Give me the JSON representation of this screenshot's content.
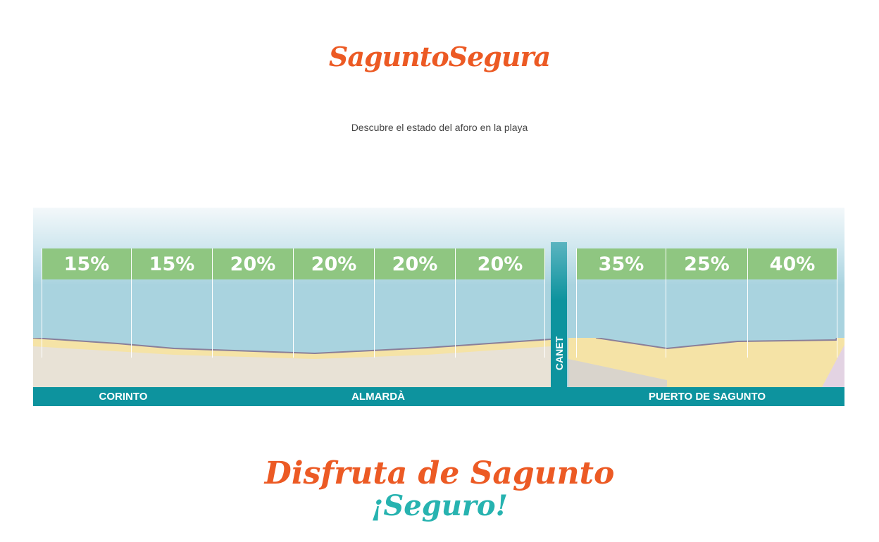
{
  "header": {
    "logo_text": "SaguntoSegura",
    "subtitle": "Descubre el estado del aforo en la playa"
  },
  "beach_map": {
    "sectors_left": [
      {
        "occupancy": "15%"
      },
      {
        "occupancy": "15%"
      },
      {
        "occupancy": "20%"
      },
      {
        "occupancy": "20%"
      },
      {
        "occupancy": "20%"
      },
      {
        "occupancy": "20%"
      }
    ],
    "sectors_right": [
      {
        "occupancy": "35%"
      },
      {
        "occupancy": "25%"
      },
      {
        "occupancy": "40%"
      }
    ],
    "divider_label": "CANET",
    "zones": [
      "CORINTO",
      "ALMARDÀ",
      "PUERTO DE SAGUNTO"
    ],
    "colors": {
      "label_green": "#8fc681",
      "sea": "#a9d3df",
      "bar_teal": "#0d939e",
      "sand": "#f5e3a6"
    }
  },
  "footer": {
    "slogan_line1": "Disfruta de Sagunto",
    "slogan_line2": "¡Seguro!"
  }
}
